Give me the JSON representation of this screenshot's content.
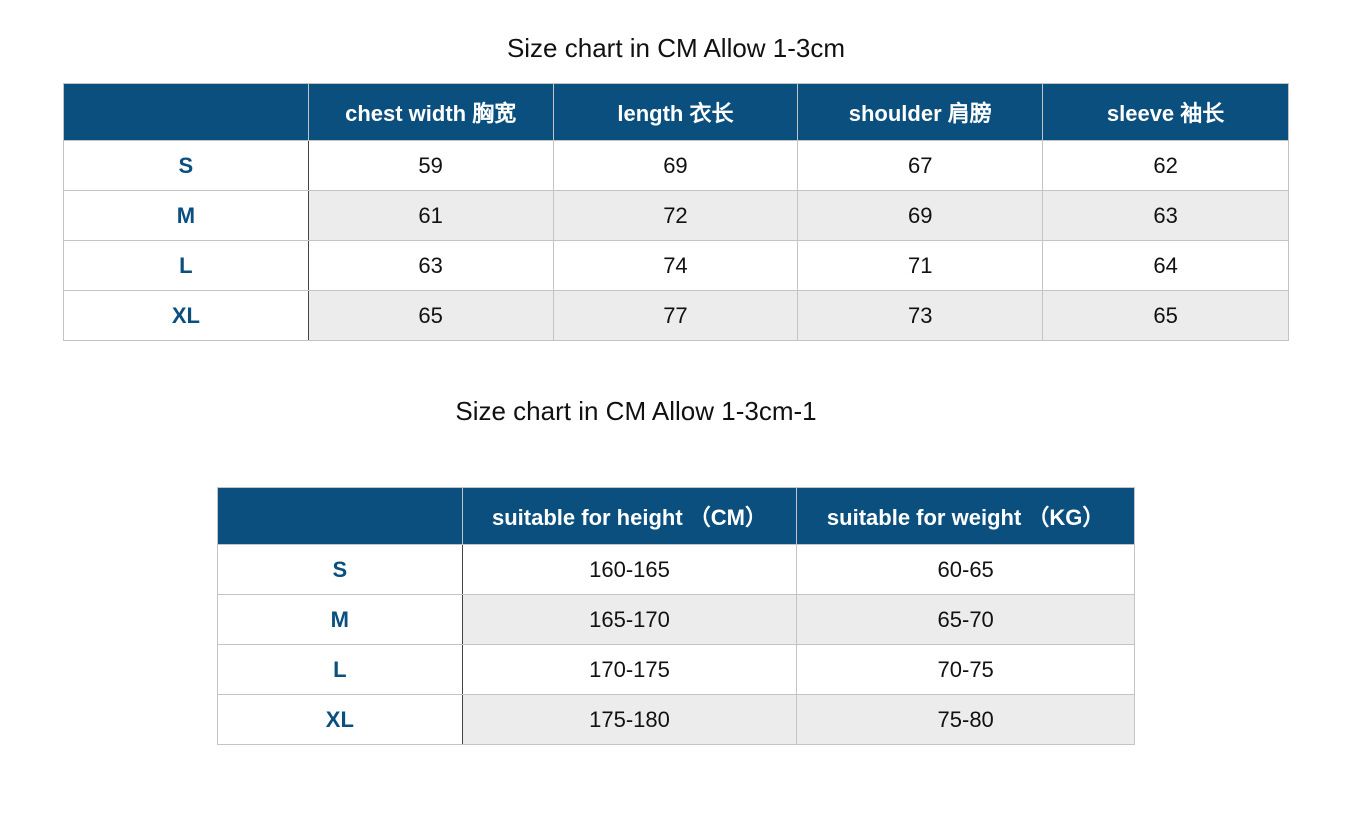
{
  "table1": {
    "title": "Size chart in CM Allow 1-3cm",
    "headers": [
      "",
      "chest width 胸宽",
      "length 衣长",
      "shoulder 肩膀",
      "sleeve 袖长"
    ],
    "rows": [
      [
        "S",
        "59",
        "69",
        "67",
        "62"
      ],
      [
        "M",
        "61",
        "72",
        "69",
        "63"
      ],
      [
        "L",
        "63",
        "74",
        "71",
        "64"
      ],
      [
        "XL",
        "65",
        "77",
        "73",
        "65"
      ]
    ]
  },
  "table2": {
    "title": "Size chart in CM Allow 1-3cm-1",
    "headers": [
      "",
      "suitable for height （CM）",
      "suitable for weight （KG）"
    ],
    "rows": [
      [
        "S",
        "160-165",
        "60-65"
      ],
      [
        "M",
        "165-170",
        "65-70"
      ],
      [
        "L",
        "170-175",
        "70-75"
      ],
      [
        "XL",
        "175-180",
        "75-80"
      ]
    ]
  },
  "colors": {
    "header_bg": "#0b4f7f",
    "size_text": "#0b4f7f",
    "alt_row": "#ececec"
  }
}
